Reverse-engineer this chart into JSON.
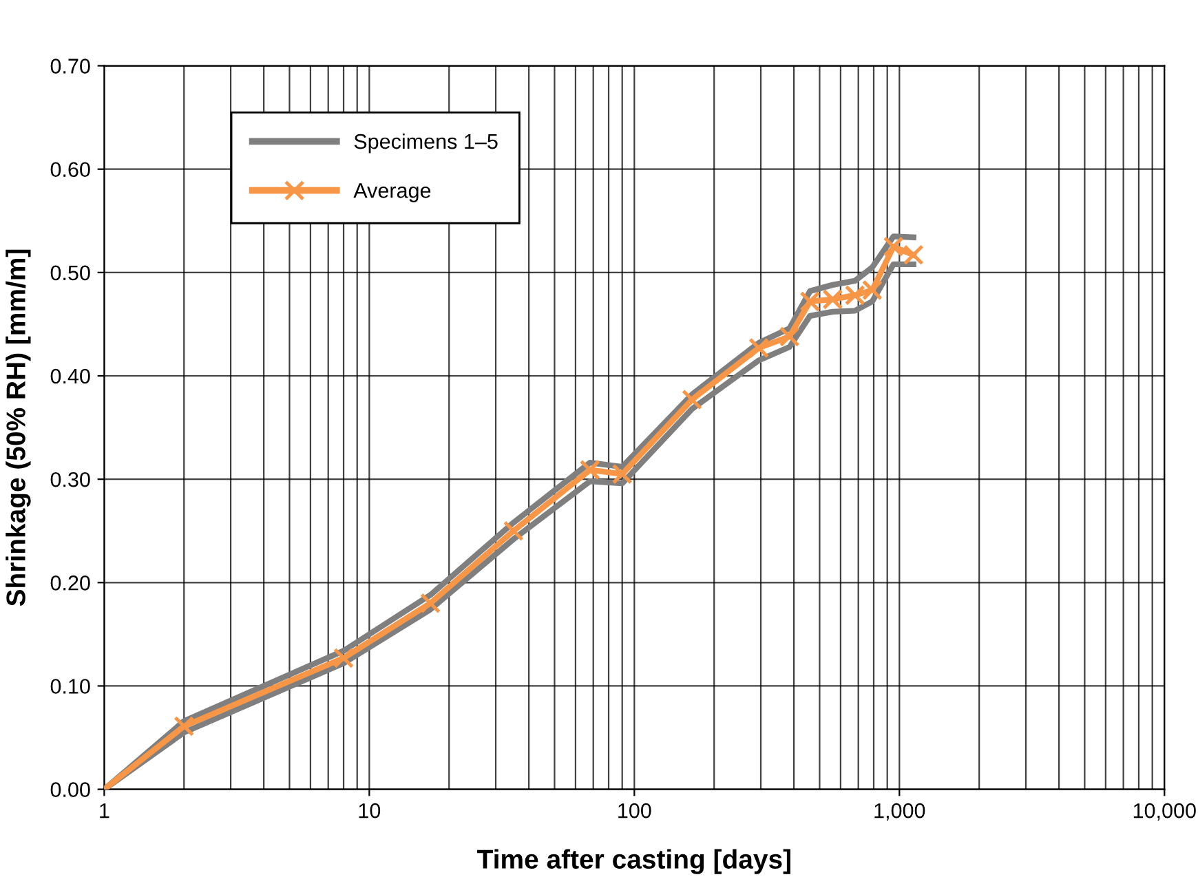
{
  "chart_data": {
    "type": "line",
    "xlabel": "Time after casting [days]",
    "ylabel": "Shrinkage (50% RH) [mm/m]",
    "x": [
      1,
      2,
      8,
      17,
      35,
      68,
      90,
      165,
      295,
      385,
      460,
      560,
      680,
      790,
      950,
      1130
    ],
    "series": [
      {
        "name": "Specimens 1–5",
        "color": "#7f7f7f",
        "marker": "none",
        "values": [
          0,
          0.066,
          0.134,
          0.188,
          0.258,
          0.316,
          0.312,
          0.382,
          0.432,
          0.446,
          0.482,
          0.488,
          0.492,
          0.505,
          0.535,
          0.534
        ]
      },
      {
        "color": "#7f7f7f",
        "marker": "none",
        "values": [
          0,
          0.055,
          0.122,
          0.174,
          0.242,
          0.298,
          0.296,
          0.368,
          0.415,
          0.428,
          0.458,
          0.462,
          0.463,
          0.472,
          0.508,
          0.508
        ]
      },
      {
        "name": "Average",
        "color": "#f79646",
        "marker": "cross",
        "values": [
          0,
          0.061,
          0.127,
          0.18,
          0.25,
          0.309,
          0.305,
          0.377,
          0.427,
          0.438,
          0.472,
          0.474,
          0.478,
          0.483,
          0.525,
          0.517
        ]
      }
    ],
    "log": "x",
    "xlim": [
      1,
      10000
    ],
    "xticks": [
      1,
      10,
      100,
      {
        "value": 1000,
        "label": "1,000"
      },
      {
        "value": 10000,
        "label": "10,000"
      }
    ],
    "ylim": [
      0,
      0.7
    ],
    "yticks": [
      {
        "value": 0,
        "label": "0.00"
      },
      {
        "value": 0.1,
        "label": "0.10"
      },
      {
        "value": 0.2,
        "label": "0.20"
      },
      {
        "value": 0.3,
        "label": "0.30"
      },
      {
        "value": 0.4,
        "label": "0.40"
      },
      {
        "value": 0.5,
        "label": "0.50"
      },
      {
        "value": 0.6,
        "label": "0.60"
      },
      {
        "value": 0.7,
        "label": "0.70"
      }
    ],
    "grid": true,
    "legend": "top left"
  }
}
